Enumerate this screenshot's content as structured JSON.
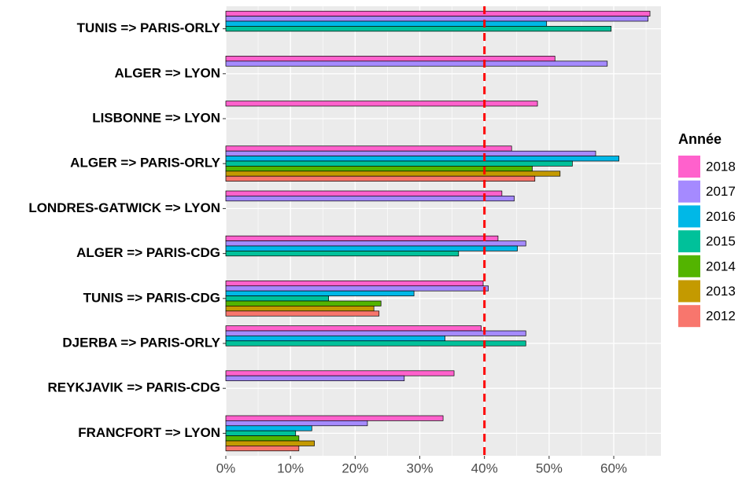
{
  "chart_data": {
    "type": "bar",
    "orientation": "horizontal",
    "categories": [
      "TUNIS => PARIS-ORLY",
      "ALGER => LYON",
      "LISBONNE => LYON",
      "ALGER => PARIS-ORLY",
      "LONDRES-GATWICK => LYON",
      "ALGER => PARIS-CDG",
      "TUNIS => PARIS-CDG",
      "DJERBA => PARIS-ORLY",
      "REYKJAVIK => PARIS-CDG",
      "FRANCFORT => LYON"
    ],
    "legend_title": "Année",
    "series": [
      {
        "name": "2018",
        "color": "#FF61CC",
        "values": [
          65.6,
          50.9,
          48.2,
          44.2,
          42.7,
          42.1,
          39.8,
          39.5,
          35.3,
          33.6
        ]
      },
      {
        "name": "2017",
        "color": "#A58AFF",
        "values": [
          65.3,
          59.0,
          null,
          57.2,
          44.6,
          46.4,
          40.6,
          46.4,
          27.6,
          21.9
        ]
      },
      {
        "name": "2016",
        "color": "#00B8E7",
        "values": [
          49.6,
          null,
          null,
          60.8,
          null,
          45.1,
          29.1,
          33.9,
          null,
          13.3
        ]
      },
      {
        "name": "2015",
        "color": "#00C19A",
        "values": [
          59.6,
          null,
          null,
          53.6,
          null,
          36.0,
          15.9,
          46.4,
          null,
          10.8
        ]
      },
      {
        "name": "2014",
        "color": "#53B400",
        "values": [
          null,
          null,
          null,
          47.4,
          null,
          null,
          24.0,
          null,
          null,
          11.3
        ]
      },
      {
        "name": "2013",
        "color": "#C49A00",
        "values": [
          null,
          null,
          null,
          51.7,
          null,
          null,
          22.9,
          null,
          null,
          13.7
        ]
      },
      {
        "name": "2012",
        "color": "#F8766D",
        "values": [
          null,
          null,
          null,
          47.8,
          null,
          null,
          23.7,
          null,
          null,
          11.3
        ]
      }
    ],
    "xlim": [
      0,
      67.3
    ],
    "xticks": [
      {
        "value": 0,
        "label": "0%"
      },
      {
        "value": 10,
        "label": "10%"
      },
      {
        "value": 20,
        "label": "20%"
      },
      {
        "value": 30,
        "label": "30%"
      },
      {
        "value": 40,
        "label": "40%"
      },
      {
        "value": 50,
        "label": "50%"
      },
      {
        "value": 60,
        "label": "60%"
      }
    ],
    "reference_line": {
      "value": 40,
      "color": "#FF0000"
    },
    "grid": true,
    "legend_position": "right"
  }
}
